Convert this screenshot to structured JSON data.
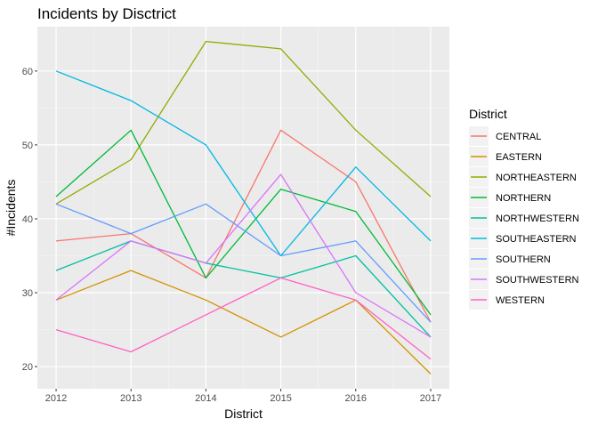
{
  "chart_data": {
    "type": "line",
    "title": "Incidents by Disctrict",
    "xlabel": "District",
    "ylabel": "#Incidents",
    "x": [
      2012,
      2013,
      2014,
      2015,
      2016,
      2017
    ],
    "xlim": [
      2011.75,
      2017.25
    ],
    "ylim": [
      17,
      66
    ],
    "yticks": [
      20,
      30,
      40,
      50,
      60
    ],
    "grid": true,
    "legend_title": "District",
    "legend_position": "right",
    "series": [
      {
        "name": "CENTRAL",
        "color": "#F8766D",
        "values": [
          37,
          38,
          32,
          52,
          45,
          26
        ]
      },
      {
        "name": "EASTERN",
        "color": "#D39200",
        "values": [
          29,
          33,
          29,
          24,
          29,
          19
        ]
      },
      {
        "name": "NORTHEASTERN",
        "color": "#93AA00",
        "values": [
          42,
          48,
          64,
          63,
          52,
          43
        ]
      },
      {
        "name": "NORTHERN",
        "color": "#00BA38",
        "values": [
          43,
          52,
          32,
          44,
          41,
          27
        ]
      },
      {
        "name": "NORTHWESTERN",
        "color": "#00C19F",
        "values": [
          33,
          37,
          34,
          32,
          35,
          24
        ]
      },
      {
        "name": "SOUTHEASTERN",
        "color": "#00B9E3",
        "values": [
          60,
          56,
          50,
          35,
          47,
          37
        ]
      },
      {
        "name": "SOUTHERN",
        "color": "#619CFF",
        "values": [
          42,
          38,
          42,
          35,
          37,
          26
        ]
      },
      {
        "name": "SOUTHWESTERN",
        "color": "#DB72FB",
        "values": [
          29,
          37,
          34,
          46,
          30,
          24
        ]
      },
      {
        "name": "WESTERN",
        "color": "#FF61C3",
        "values": [
          25,
          22,
          27,
          32,
          29,
          21
        ]
      }
    ]
  }
}
